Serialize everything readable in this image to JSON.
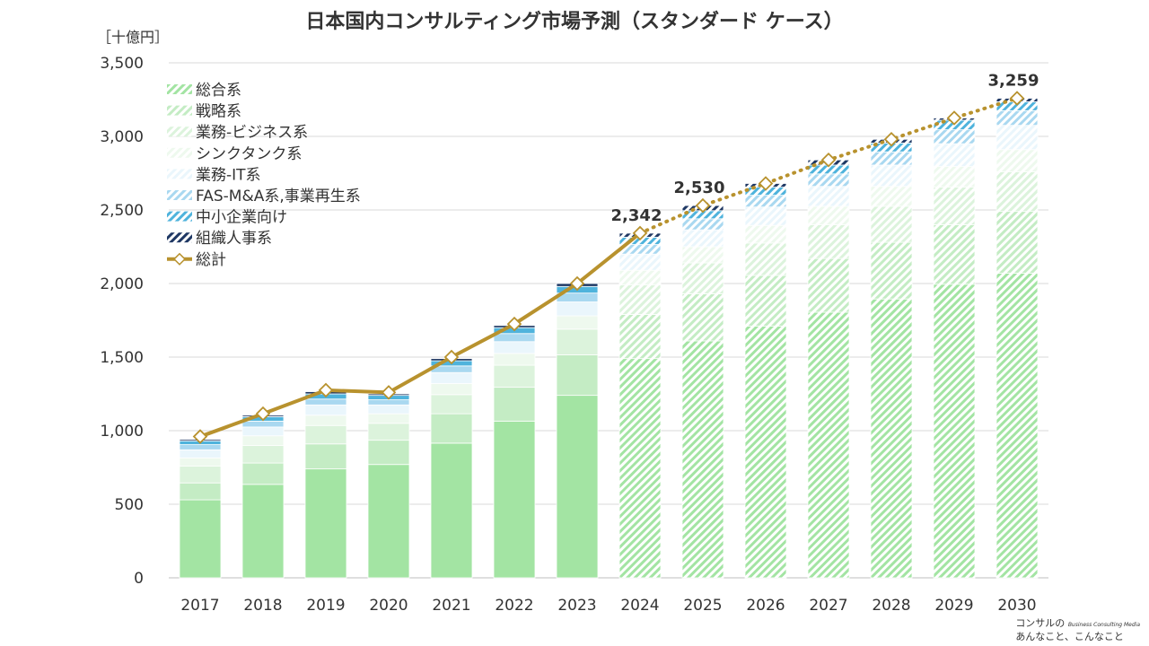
{
  "chart_data": {
    "type": "bar",
    "title": "日本国内コンサルティング市場予測（スタンダード ケース）",
    "ylabel": "［十億円］",
    "categories": [
      "2017",
      "2018",
      "2019",
      "2020",
      "2021",
      "2022",
      "2023",
      "2024",
      "2025",
      "2026",
      "2027",
      "2028",
      "2029",
      "2030"
    ],
    "forecast_from": "2024",
    "ylim": [
      0,
      3500
    ],
    "yticks": [
      0,
      500,
      1000,
      1500,
      2000,
      2500,
      3000,
      3500
    ],
    "ytick_labels": [
      "0",
      "500",
      "1,000",
      "1,500",
      "2,000",
      "2,500",
      "3,000",
      "3,500"
    ],
    "series": [
      {
        "name": "総合系",
        "color": "#a3e4a3",
        "values": [
          530,
          635,
          740,
          770,
          915,
          1065,
          1240,
          1490,
          1610,
          1710,
          1805,
          1895,
          1995,
          2070
        ]
      },
      {
        "name": "戦略系",
        "color": "#c4ecc4",
        "values": [
          115,
          145,
          170,
          165,
          200,
          230,
          275,
          300,
          320,
          345,
          365,
          385,
          405,
          420
        ]
      },
      {
        "name": "業務-ビジネス系",
        "color": "#dcf3dc",
        "values": [
          115,
          120,
          125,
          115,
          130,
          150,
          175,
          200,
          210,
          220,
          230,
          245,
          255,
          270
        ]
      },
      {
        "name": "シンクタンク系",
        "color": "#eef9ee",
        "values": [
          55,
          65,
          70,
          65,
          75,
          80,
          90,
          100,
          110,
          120,
          125,
          135,
          140,
          150
        ]
      },
      {
        "name": "業務-IT系",
        "color": "#eaf6fc",
        "values": [
          55,
          60,
          70,
          60,
          75,
          80,
          95,
          110,
          115,
          125,
          135,
          145,
          155,
          165
        ]
      },
      {
        "name": "FAS-M&A系,事業再生系",
        "color": "#a9d8f0",
        "values": [
          35,
          40,
          40,
          35,
          45,
          55,
          60,
          65,
          75,
          80,
          85,
          90,
          95,
          100
        ]
      },
      {
        "name": "中小企業向け",
        "color": "#4fb3dc",
        "values": [
          25,
          30,
          35,
          30,
          35,
          40,
          45,
          50,
          55,
          55,
          60,
          60,
          65,
          60
        ]
      },
      {
        "name": "組織人事系",
        "color": "#1f3864",
        "values": [
          10,
          10,
          15,
          10,
          15,
          15,
          20,
          27,
          35,
          25,
          35,
          25,
          15,
          24
        ]
      }
    ],
    "total": {
      "name": "総計",
      "color": "#b8922e",
      "values": [
        960,
        1115,
        1275,
        1260,
        1500,
        1725,
        2000,
        2342,
        2530,
        2680,
        2840,
        2980,
        3125,
        3259
      ]
    },
    "data_labels": [
      {
        "category": "2024",
        "text": "2,342",
        "value": 2342
      },
      {
        "category": "2025",
        "text": "2,530",
        "value": 2530
      },
      {
        "category": "2030",
        "text": "3,259",
        "value": 3259
      }
    ],
    "legend_position": "top-left",
    "grid": true
  },
  "footer": {
    "logo_line1": "コンサルの",
    "logo_tagline": "Business Consulting Media",
    "logo_line2": "あんなこと、こんなこと"
  }
}
